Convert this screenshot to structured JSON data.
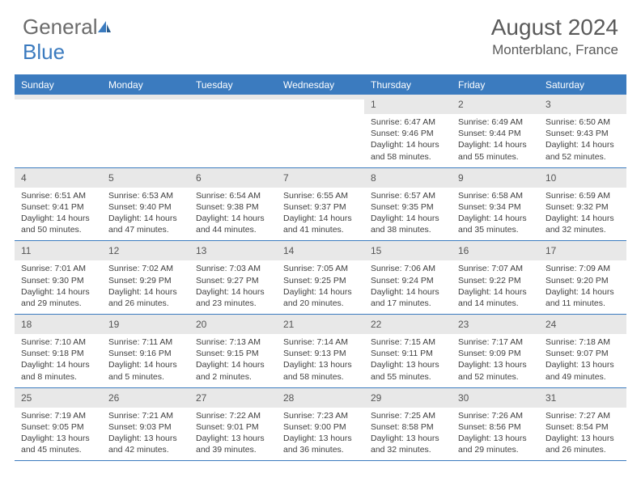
{
  "logo": {
    "general": "General",
    "blue": "Blue"
  },
  "title": "August 2024",
  "location": "Monterblanc, France",
  "colors": {
    "accent": "#3b7bbf",
    "dayHeaderBg": "#e8e8e8",
    "text": "#404040",
    "titleText": "#5a5a5a"
  },
  "weekdays": [
    "Sunday",
    "Monday",
    "Tuesday",
    "Wednesday",
    "Thursday",
    "Friday",
    "Saturday"
  ],
  "weeks": [
    [
      {
        "empty": true
      },
      {
        "empty": true
      },
      {
        "empty": true
      },
      {
        "empty": true
      },
      {
        "n": "1",
        "sunrise": "6:47 AM",
        "sunset": "9:46 PM",
        "dl": "14 hours and 58 minutes."
      },
      {
        "n": "2",
        "sunrise": "6:49 AM",
        "sunset": "9:44 PM",
        "dl": "14 hours and 55 minutes."
      },
      {
        "n": "3",
        "sunrise": "6:50 AM",
        "sunset": "9:43 PM",
        "dl": "14 hours and 52 minutes."
      }
    ],
    [
      {
        "n": "4",
        "sunrise": "6:51 AM",
        "sunset": "9:41 PM",
        "dl": "14 hours and 50 minutes."
      },
      {
        "n": "5",
        "sunrise": "6:53 AM",
        "sunset": "9:40 PM",
        "dl": "14 hours and 47 minutes."
      },
      {
        "n": "6",
        "sunrise": "6:54 AM",
        "sunset": "9:38 PM",
        "dl": "14 hours and 44 minutes."
      },
      {
        "n": "7",
        "sunrise": "6:55 AM",
        "sunset": "9:37 PM",
        "dl": "14 hours and 41 minutes."
      },
      {
        "n": "8",
        "sunrise": "6:57 AM",
        "sunset": "9:35 PM",
        "dl": "14 hours and 38 minutes."
      },
      {
        "n": "9",
        "sunrise": "6:58 AM",
        "sunset": "9:34 PM",
        "dl": "14 hours and 35 minutes."
      },
      {
        "n": "10",
        "sunrise": "6:59 AM",
        "sunset": "9:32 PM",
        "dl": "14 hours and 32 minutes."
      }
    ],
    [
      {
        "n": "11",
        "sunrise": "7:01 AM",
        "sunset": "9:30 PM",
        "dl": "14 hours and 29 minutes."
      },
      {
        "n": "12",
        "sunrise": "7:02 AM",
        "sunset": "9:29 PM",
        "dl": "14 hours and 26 minutes."
      },
      {
        "n": "13",
        "sunrise": "7:03 AM",
        "sunset": "9:27 PM",
        "dl": "14 hours and 23 minutes."
      },
      {
        "n": "14",
        "sunrise": "7:05 AM",
        "sunset": "9:25 PM",
        "dl": "14 hours and 20 minutes."
      },
      {
        "n": "15",
        "sunrise": "7:06 AM",
        "sunset": "9:24 PM",
        "dl": "14 hours and 17 minutes."
      },
      {
        "n": "16",
        "sunrise": "7:07 AM",
        "sunset": "9:22 PM",
        "dl": "14 hours and 14 minutes."
      },
      {
        "n": "17",
        "sunrise": "7:09 AM",
        "sunset": "9:20 PM",
        "dl": "14 hours and 11 minutes."
      }
    ],
    [
      {
        "n": "18",
        "sunrise": "7:10 AM",
        "sunset": "9:18 PM",
        "dl": "14 hours and 8 minutes."
      },
      {
        "n": "19",
        "sunrise": "7:11 AM",
        "sunset": "9:16 PM",
        "dl": "14 hours and 5 minutes."
      },
      {
        "n": "20",
        "sunrise": "7:13 AM",
        "sunset": "9:15 PM",
        "dl": "14 hours and 2 minutes."
      },
      {
        "n": "21",
        "sunrise": "7:14 AM",
        "sunset": "9:13 PM",
        "dl": "13 hours and 58 minutes."
      },
      {
        "n": "22",
        "sunrise": "7:15 AM",
        "sunset": "9:11 PM",
        "dl": "13 hours and 55 minutes."
      },
      {
        "n": "23",
        "sunrise": "7:17 AM",
        "sunset": "9:09 PM",
        "dl": "13 hours and 52 minutes."
      },
      {
        "n": "24",
        "sunrise": "7:18 AM",
        "sunset": "9:07 PM",
        "dl": "13 hours and 49 minutes."
      }
    ],
    [
      {
        "n": "25",
        "sunrise": "7:19 AM",
        "sunset": "9:05 PM",
        "dl": "13 hours and 45 minutes."
      },
      {
        "n": "26",
        "sunrise": "7:21 AM",
        "sunset": "9:03 PM",
        "dl": "13 hours and 42 minutes."
      },
      {
        "n": "27",
        "sunrise": "7:22 AM",
        "sunset": "9:01 PM",
        "dl": "13 hours and 39 minutes."
      },
      {
        "n": "28",
        "sunrise": "7:23 AM",
        "sunset": "9:00 PM",
        "dl": "13 hours and 36 minutes."
      },
      {
        "n": "29",
        "sunrise": "7:25 AM",
        "sunset": "8:58 PM",
        "dl": "13 hours and 32 minutes."
      },
      {
        "n": "30",
        "sunrise": "7:26 AM",
        "sunset": "8:56 PM",
        "dl": "13 hours and 29 minutes."
      },
      {
        "n": "31",
        "sunrise": "7:27 AM",
        "sunset": "8:54 PM",
        "dl": "13 hours and 26 minutes."
      }
    ]
  ],
  "labels": {
    "sunrise": "Sunrise:",
    "sunset": "Sunset:",
    "daylight": "Daylight:"
  }
}
